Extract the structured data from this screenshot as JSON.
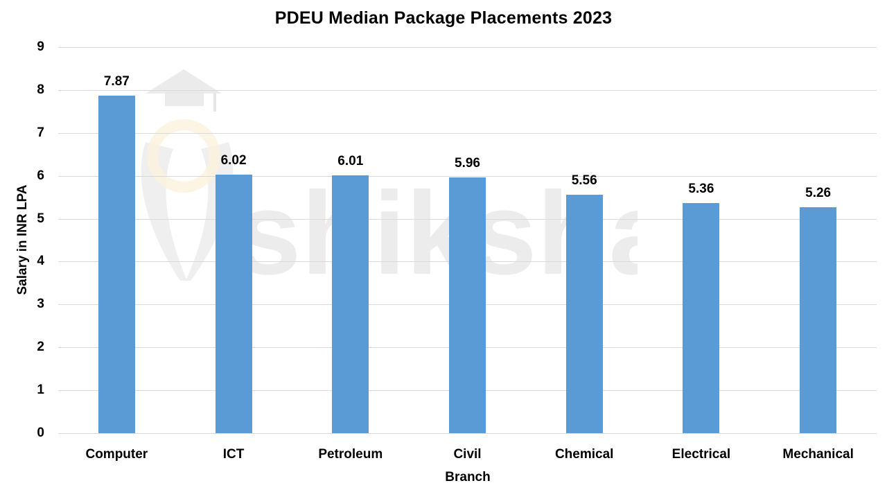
{
  "chart": {
    "title": "PDEU Median Package Placements 2023",
    "ylabel": "Salary in INR LPA",
    "xlabel": "Branch",
    "bar_color": "#5b9bd5",
    "grid_color": "#d9d9d9",
    "watermark_text": "shiksha",
    "yticks": [
      "0",
      "1",
      "2",
      "3",
      "4",
      "5",
      "6",
      "7",
      "8",
      "9"
    ],
    "bars": [
      {
        "category": "Computer",
        "value": 7.87,
        "label": "7.87"
      },
      {
        "category": "ICT",
        "value": 6.02,
        "label": "6.02"
      },
      {
        "category": "Petroleum",
        "value": 6.01,
        "label": "6.01"
      },
      {
        "category": "Civil",
        "value": 5.96,
        "label": "5.96"
      },
      {
        "category": "Chemical",
        "value": 5.56,
        "label": "5.56"
      },
      {
        "category": "Electrical",
        "value": 5.36,
        "label": "5.36"
      },
      {
        "category": "Mechanical",
        "value": 5.26,
        "label": "5.26"
      }
    ]
  },
  "chart_data": {
    "type": "bar",
    "title": "PDEU Median Package Placements 2023",
    "xlabel": "Branch",
    "ylabel": "Salary in INR LPA",
    "categories": [
      "Computer",
      "ICT",
      "Petroleum",
      "Civil",
      "Chemical",
      "Electrical",
      "Mechanical"
    ],
    "values": [
      7.87,
      6.02,
      6.01,
      5.96,
      5.56,
      5.36,
      5.26
    ],
    "ylim": [
      0,
      9
    ],
    "yticks": [
      0,
      1,
      2,
      3,
      4,
      5,
      6,
      7,
      8,
      9
    ],
    "grid": true,
    "legend": null,
    "data_labels": true
  }
}
